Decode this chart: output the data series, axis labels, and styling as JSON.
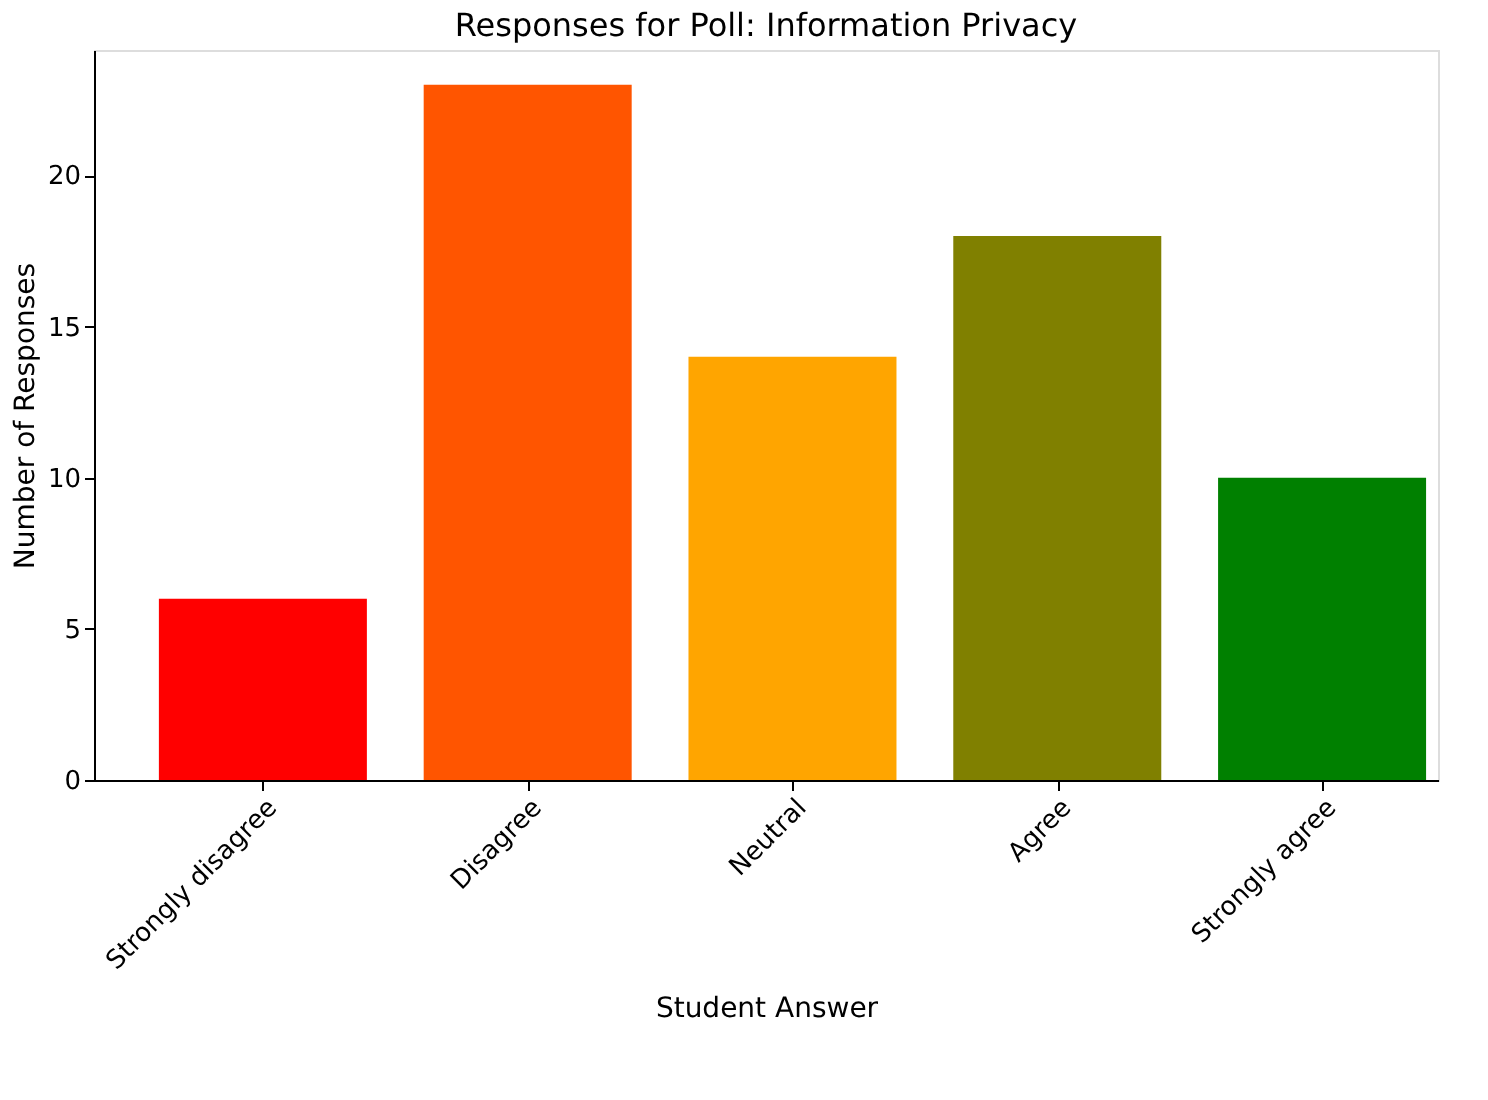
{
  "chart_data": {
    "type": "bar",
    "title": "Responses for Poll: Information Privacy",
    "xlabel": "Student Answer",
    "ylabel": "Number of Responses",
    "categories": [
      "Strongly disagree",
      "Disagree",
      "Neutral",
      "Agree",
      "Strongly agree"
    ],
    "values": [
      6,
      23,
      14,
      18,
      10
    ],
    "colors": [
      "#ff0000",
      "#ff5500",
      "#ffa500",
      "#808000",
      "#008000"
    ],
    "ylim": [
      0,
      24.15
    ],
    "yticks": [
      0,
      5,
      10,
      15,
      20
    ],
    "grid": false
  }
}
